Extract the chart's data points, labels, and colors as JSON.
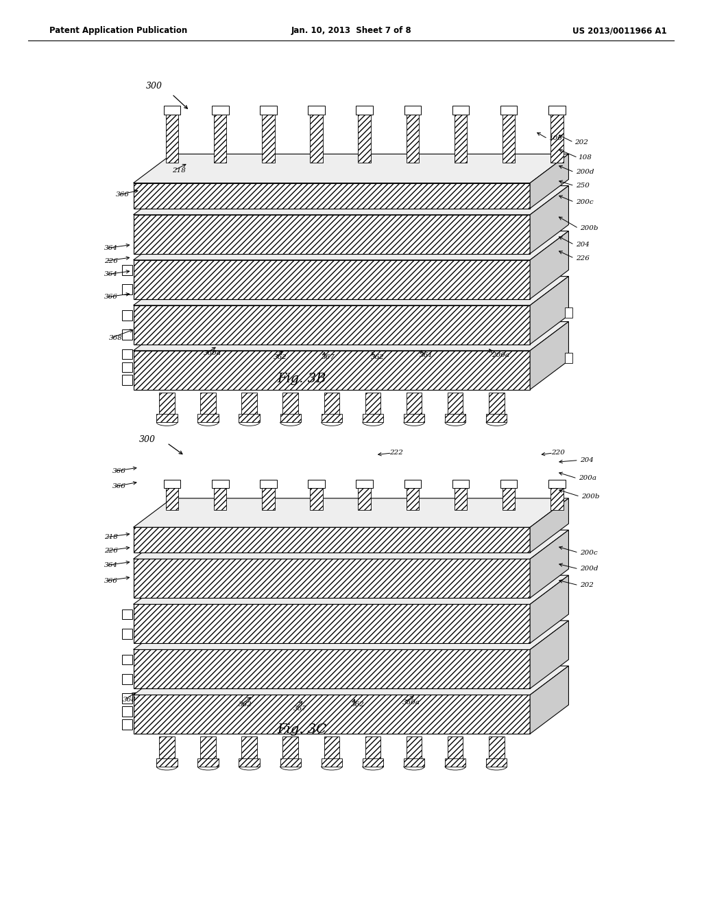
{
  "bg_color": "#ffffff",
  "header_left": "Patent Application Publication",
  "header_center": "Jan. 10, 2013  Sheet 7 of 8",
  "header_right": "US 2013/0011966 A1",
  "fig3b_label": "Fig. 3B",
  "fig3c_label": "Fig. 3C"
}
